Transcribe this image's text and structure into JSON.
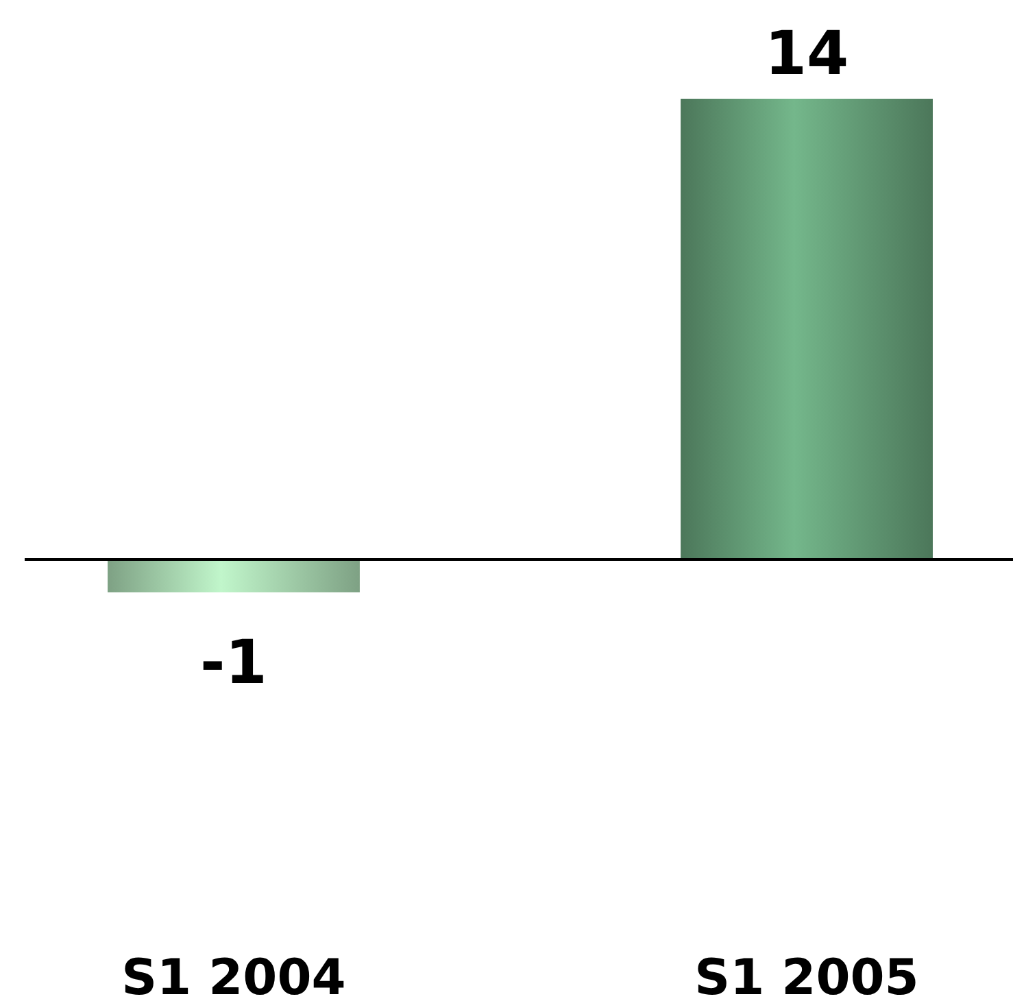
{
  "chart_data": {
    "type": "bar",
    "categories": [
      "S1 2004",
      "S1 2005"
    ],
    "values": [
      -1,
      14
    ],
    "colors": [
      "#9cc7a4",
      "#5e9470"
    ],
    "data_labels": true
  }
}
